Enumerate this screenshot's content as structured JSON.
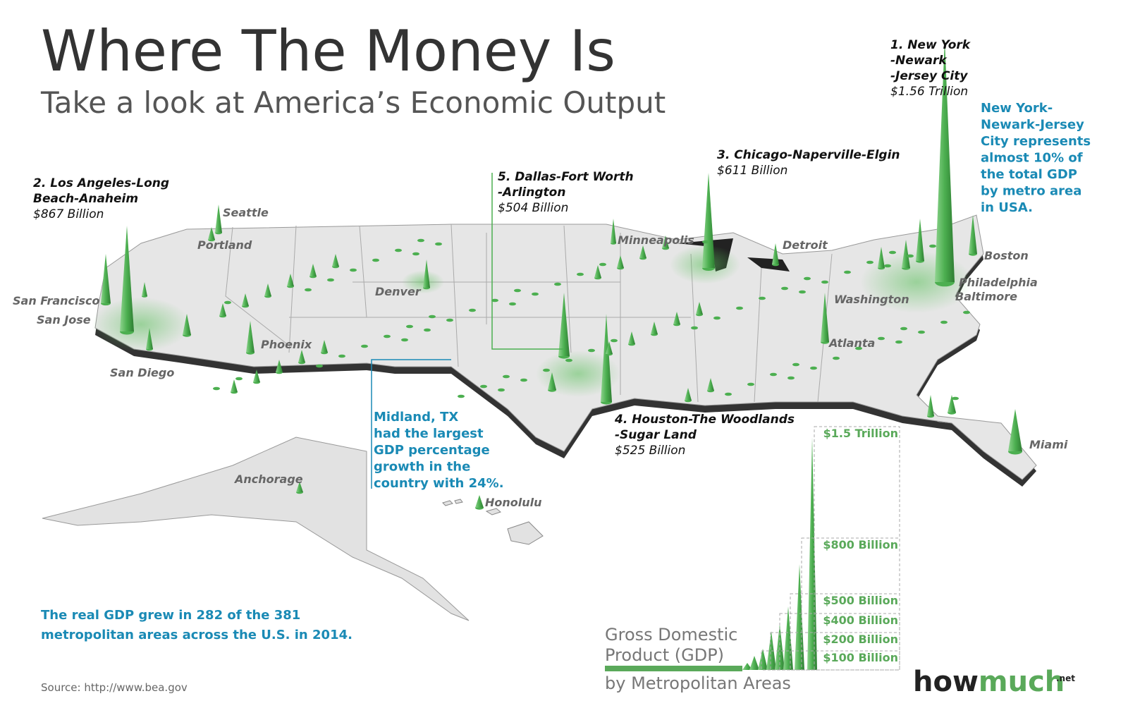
{
  "header": {
    "title": "Where The Money Is",
    "subtitle": "Take a look at America’s Economic Output"
  },
  "top_metros": [
    {
      "lines": [
        "1. New York",
        "-Newark",
        "-Jersey City"
      ],
      "value": "$1.56 Trillion"
    },
    {
      "lines": [
        "2. Los Angeles-Long",
        "Beach-Anaheim"
      ],
      "value": "$867 Billion"
    },
    {
      "lines": [
        "3. Chicago-Naperville-Elgin"
      ],
      "value": "$611 Billion"
    },
    {
      "lines": [
        "4. Houston-The Woodlands",
        "-Sugar Land"
      ],
      "value": "$525 Billion"
    },
    {
      "lines": [
        "5. Dallas-Fort Worth",
        "-Arlington"
      ],
      "value": "$504 Billion"
    }
  ],
  "cities": [
    "Seattle",
    "Portland",
    "San Francisco",
    "San Jose",
    "San Diego",
    "Phoenix",
    "Denver",
    "Minneapolis",
    "Detroit",
    "Boston",
    "Philadelphia",
    "Baltimore",
    "Washington",
    "Atlanta",
    "Miami",
    "Anchorage",
    "Honolulu"
  ],
  "notes": {
    "new_york": [
      "New York-",
      "Newark-Jersey",
      "City represents",
      "almost 10% of",
      "the total GDP",
      "by metro area",
      "in USA."
    ],
    "midland": [
      "Midland, TX",
      "had the largest",
      "GDP percentage",
      "growth in the",
      "country with 24%."
    ],
    "summary": [
      "The real GDP grew in 282 of the 381",
      "metropolitan areas across the U.S. in 2014."
    ]
  },
  "legend": {
    "title_lines": [
      "Gross Domestic",
      "Product (GDP)"
    ],
    "subtitle": "by Metropolitan Areas",
    "levels": [
      "$1.5 Trillion",
      "$800 Billion",
      "$500 Billion",
      "$400 Billion",
      "$200 Billion",
      "$100 Billion"
    ]
  },
  "source": "Source: http://www.bea.gov",
  "logo": {
    "part1": "how",
    "part2": "much",
    "suffix": ".net"
  }
}
